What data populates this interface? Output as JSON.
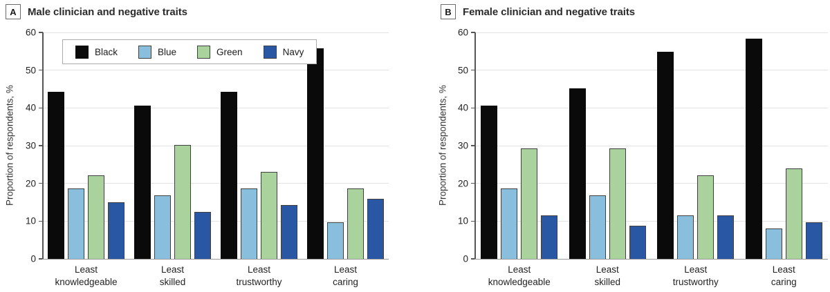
{
  "figure": {
    "panels": [
      {
        "label": "A",
        "title": "Male clinician and negative traits"
      },
      {
        "label": "B",
        "title": "Female clinician and negative traits"
      }
    ],
    "legend": {
      "position": "top-left-inside-panel-A",
      "entries": [
        {
          "label": "Black",
          "color": "#0a0a0a"
        },
        {
          "label": "Blue",
          "color": "#89bedd"
        },
        {
          "label": "Green",
          "color": "#a9d29c"
        },
        {
          "label": "Navy",
          "color": "#2a57a3"
        }
      ]
    }
  },
  "chart_data": [
    {
      "type": "bar",
      "title": "Male clinician and negative traits",
      "categories": [
        "Least knowledgeable",
        "Least skilled",
        "Least trustworthy",
        "Least caring"
      ],
      "series": [
        {
          "name": "Black",
          "color": "#0a0a0a",
          "values": [
            44.2,
            40.7,
            44.2,
            55.8
          ]
        },
        {
          "name": "Blue",
          "color": "#89bedd",
          "values": [
            18.6,
            16.8,
            18.6,
            9.7
          ]
        },
        {
          "name": "Green",
          "color": "#a9d29c",
          "values": [
            22.1,
            30.1,
            23.0,
            18.6
          ]
        },
        {
          "name": "Navy",
          "color": "#2a57a3",
          "values": [
            15.0,
            12.4,
            14.2,
            15.9
          ]
        }
      ],
      "xlabel": "",
      "ylabel": "Proportion of respondents, %",
      "ylim": [
        0,
        60
      ],
      "yticks": [
        0,
        10,
        20,
        30,
        40,
        50,
        60
      ],
      "grid": true,
      "legend_position": "top-left"
    },
    {
      "type": "bar",
      "title": "Female clinician and negative traits",
      "categories": [
        "Least knowledgeable",
        "Least skilled",
        "Least trustworthy",
        "Least caring"
      ],
      "series": [
        {
          "name": "Black",
          "color": "#0a0a0a",
          "values": [
            40.7,
            45.1,
            54.9,
            58.4
          ]
        },
        {
          "name": "Blue",
          "color": "#89bedd",
          "values": [
            18.6,
            16.8,
            11.5,
            8.0
          ]
        },
        {
          "name": "Green",
          "color": "#a9d29c",
          "values": [
            29.2,
            29.2,
            22.1,
            23.9
          ]
        },
        {
          "name": "Navy",
          "color": "#2a57a3",
          "values": [
            11.5,
            8.8,
            11.5,
            9.7
          ]
        }
      ],
      "xlabel": "",
      "ylabel": "Proportion of respondents, %",
      "ylim": [
        0,
        60
      ],
      "yticks": [
        0,
        10,
        20,
        30,
        40,
        50,
        60
      ],
      "grid": true,
      "legend_position": "none"
    }
  ]
}
